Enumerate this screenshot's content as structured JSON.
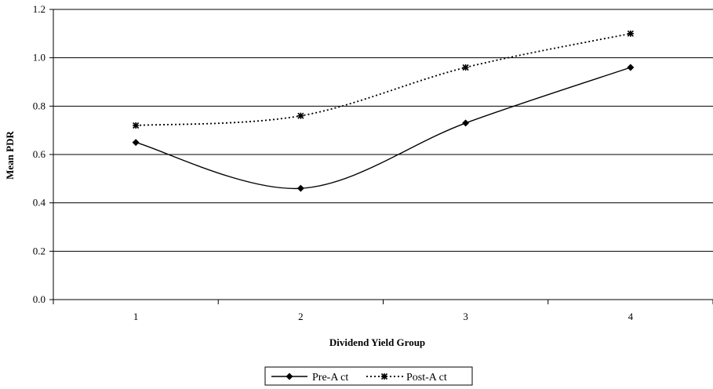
{
  "chart_data": {
    "type": "line",
    "title": "",
    "xlabel": "Dividend Yield Group",
    "ylabel": "Mean PDR",
    "categories": [
      "1",
      "2",
      "3",
      "4"
    ],
    "ylim": [
      0,
      1.2
    ],
    "yticks": [
      "0.0",
      "0.2",
      "0.4",
      "0.6",
      "0.8",
      "1.0",
      "1.2"
    ],
    "grid": true,
    "legend_position": "bottom",
    "series": [
      {
        "name": "Pre-A ct",
        "values": [
          0.65,
          0.46,
          0.73,
          0.96
        ],
        "style": "solid",
        "marker": "diamond",
        "color": "#000000"
      },
      {
        "name": "Post-A ct",
        "values": [
          0.72,
          0.76,
          0.96,
          1.1
        ],
        "style": "dotted",
        "marker": "asterisk",
        "color": "#000000"
      }
    ]
  }
}
